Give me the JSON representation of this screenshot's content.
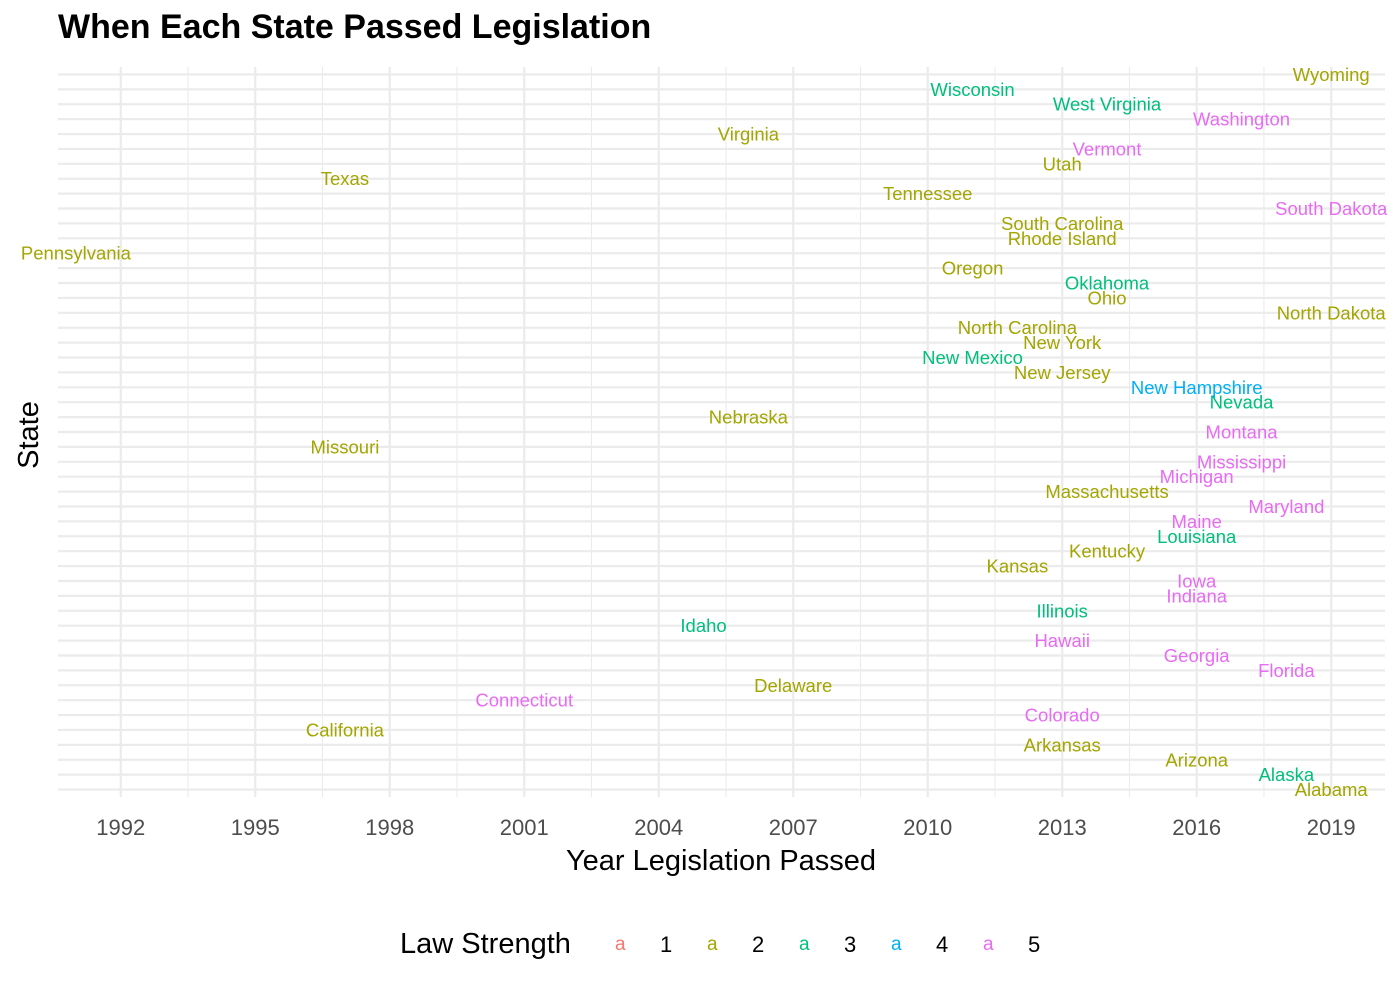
{
  "chart_data": {
    "type": "scatter",
    "title": "When Each State Passed Legislation",
    "xlabel": "Year Legislation Passed",
    "ylabel": "State",
    "xlim": [
      1990.6,
      2020.2
    ],
    "x_ticks": [
      "1992",
      "1995",
      "1998",
      "2001",
      "2004",
      "2007",
      "2010",
      "2013",
      "2016",
      "2019"
    ],
    "grid": true,
    "legend": {
      "title": "Law Strength",
      "position": "bottom",
      "key_glyph": "a",
      "levels": [
        "1",
        "2",
        "3",
        "4",
        "5"
      ],
      "colors": [
        "#F8766D",
        "#A3A500",
        "#00BF7D",
        "#00B0F6",
        "#E76BF3"
      ]
    },
    "points": [
      {
        "state": "Alabama",
        "year": 2019,
        "strength": 2
      },
      {
        "state": "Alaska",
        "year": 2018,
        "strength": 3
      },
      {
        "state": "Arizona",
        "year": 2016,
        "strength": 2
      },
      {
        "state": "Arkansas",
        "year": 2013,
        "strength": 2
      },
      {
        "state": "California",
        "year": 1997,
        "strength": 2
      },
      {
        "state": "Colorado",
        "year": 2013,
        "strength": 5
      },
      {
        "state": "Connecticut",
        "year": 2001,
        "strength": 5
      },
      {
        "state": "Delaware",
        "year": 2007,
        "strength": 2
      },
      {
        "state": "Florida",
        "year": 2018,
        "strength": 5
      },
      {
        "state": "Georgia",
        "year": 2016,
        "strength": 5
      },
      {
        "state": "Hawaii",
        "year": 2013,
        "strength": 5
      },
      {
        "state": "Idaho",
        "year": 2005,
        "strength": 3
      },
      {
        "state": "Illinois",
        "year": 2013,
        "strength": 3
      },
      {
        "state": "Indiana",
        "year": 2016,
        "strength": 5
      },
      {
        "state": "Iowa",
        "year": 2016,
        "strength": 5
      },
      {
        "state": "Kansas",
        "year": 2012,
        "strength": 2
      },
      {
        "state": "Kentucky",
        "year": 2014,
        "strength": 2
      },
      {
        "state": "Louisiana",
        "year": 2016,
        "strength": 3
      },
      {
        "state": "Maine",
        "year": 2016,
        "strength": 5
      },
      {
        "state": "Maryland",
        "year": 2018,
        "strength": 5
      },
      {
        "state": "Massachusetts",
        "year": 2014,
        "strength": 2
      },
      {
        "state": "Michigan",
        "year": 2016,
        "strength": 5
      },
      {
        "state": "Mississippi",
        "year": 2017,
        "strength": 5
      },
      {
        "state": "Missouri",
        "year": 1997,
        "strength": 2
      },
      {
        "state": "Montana",
        "year": 2017,
        "strength": 5
      },
      {
        "state": "Nebraska",
        "year": 2006,
        "strength": 2
      },
      {
        "state": "Nevada",
        "year": 2017,
        "strength": 3
      },
      {
        "state": "New Hampshire",
        "year": 2016,
        "strength": 4
      },
      {
        "state": "New Jersey",
        "year": 2013,
        "strength": 2
      },
      {
        "state": "New Mexico",
        "year": 2011,
        "strength": 3
      },
      {
        "state": "New York",
        "year": 2013,
        "strength": 2
      },
      {
        "state": "North Carolina",
        "year": 2012,
        "strength": 2
      },
      {
        "state": "North Dakota",
        "year": 2019,
        "strength": 2
      },
      {
        "state": "Ohio",
        "year": 2014,
        "strength": 2
      },
      {
        "state": "Oklahoma",
        "year": 2014,
        "strength": 3
      },
      {
        "state": "Oregon",
        "year": 2011,
        "strength": 2
      },
      {
        "state": "Pennsylvania",
        "year": 1991,
        "strength": 2
      },
      {
        "state": "Rhode Island",
        "year": 2013,
        "strength": 2
      },
      {
        "state": "South Carolina",
        "year": 2013,
        "strength": 2
      },
      {
        "state": "South Dakota",
        "year": 2019,
        "strength": 5
      },
      {
        "state": "Tennessee",
        "year": 2010,
        "strength": 2
      },
      {
        "state": "Texas",
        "year": 1997,
        "strength": 2
      },
      {
        "state": "Utah",
        "year": 2013,
        "strength": 2
      },
      {
        "state": "Vermont",
        "year": 2014,
        "strength": 5
      },
      {
        "state": "Virginia",
        "year": 2006,
        "strength": 2
      },
      {
        "state": "Washington",
        "year": 2017,
        "strength": 5
      },
      {
        "state": "West Virginia",
        "year": 2014,
        "strength": 3
      },
      {
        "state": "Wisconsin",
        "year": 2011,
        "strength": 3
      },
      {
        "state": "Wyoming",
        "year": 2019,
        "strength": 2
      }
    ]
  }
}
